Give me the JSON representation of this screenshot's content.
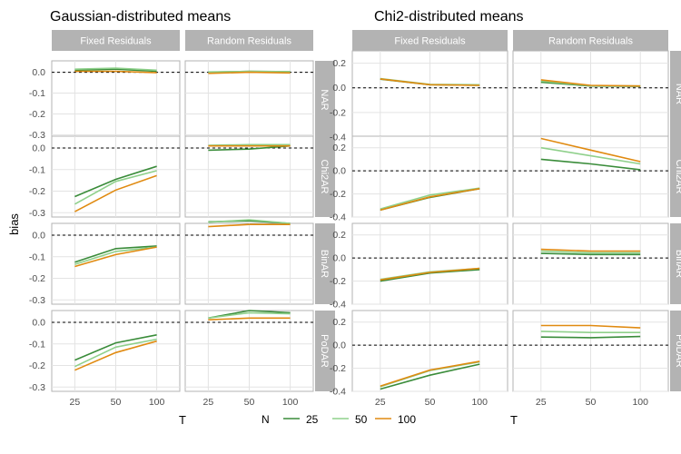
{
  "figure_titles": [
    "Gaussian-distributed means",
    "Chi2-distributed means"
  ],
  "legend": {
    "title": "N",
    "labels": [
      "25",
      "50",
      "100"
    ]
  },
  "colors": {
    "25": "#3a8c3a",
    "50": "#8fd08b",
    "100": "#e08a10",
    "strip": "#b3b3b3",
    "grid": "#e3e3e3",
    "border": "#b3b3b3"
  },
  "chart_data": [
    {
      "type": "line",
      "title": "Gaussian-distributed means",
      "xlabel": "T",
      "ylabel": "bias",
      "x": [
        25,
        50,
        100
      ],
      "x_ticks": [
        "25",
        "50",
        "100"
      ],
      "ylim": [
        -0.32,
        0.055
      ],
      "y_ticks": [
        "0.0",
        "-0.1",
        "-0.2",
        "-0.3"
      ],
      "y_tick_values": [
        0.0,
        -0.1,
        -0.2,
        -0.3
      ],
      "col_labels": [
        "Fixed Residuals",
        "Random Residuals"
      ],
      "row_labels": [
        "NAR",
        "Chi2AR",
        "BinAR",
        "PoDAR"
      ],
      "reference_line": 0,
      "panels": [
        [
          {
            "series": [
              {
                "name": "25",
                "values": [
                  0.01,
                  0.015,
                  0.005
                ]
              },
              {
                "name": "50",
                "values": [
                  0.015,
                  0.02,
                  0.01
                ]
              },
              {
                "name": "100",
                "values": [
                  0.005,
                  0.005,
                  -0.002
                ]
              }
            ]
          },
          {
            "series": [
              {
                "name": "25",
                "values": [
                  0.0,
                  0.005,
                  0.003
                ]
              },
              {
                "name": "50",
                "values": [
                  0.002,
                  0.004,
                  0.003
                ]
              },
              {
                "name": "100",
                "values": [
                  -0.005,
                  0.0,
                  -0.003
                ]
              }
            ]
          }
        ],
        [
          {
            "series": [
              {
                "name": "25",
                "values": [
                  -0.225,
                  -0.145,
                  -0.085
                ]
              },
              {
                "name": "50",
                "values": [
                  -0.26,
                  -0.155,
                  -0.105
                ]
              },
              {
                "name": "100",
                "values": [
                  -0.295,
                  -0.195,
                  -0.128
                ]
              }
            ]
          },
          {
            "series": [
              {
                "name": "25",
                "values": [
                  -0.01,
                  -0.005,
                  0.01
                ]
              },
              {
                "name": "50",
                "values": [
                  0.013,
                  0.016,
                  0.016
                ]
              },
              {
                "name": "100",
                "values": [
                  0.01,
                  0.01,
                  0.01
                ]
              }
            ]
          }
        ],
        [
          {
            "series": [
              {
                "name": "25",
                "values": [
                  -0.125,
                  -0.062,
                  -0.05
                ]
              },
              {
                "name": "50",
                "values": [
                  -0.135,
                  -0.075,
                  -0.055
                ]
              },
              {
                "name": "100",
                "values": [
                  -0.145,
                  -0.09,
                  -0.055
                ]
              }
            ]
          },
          {
            "series": [
              {
                "name": "25",
                "values": [
                  0.062,
                  0.067,
                  0.055
                ]
              },
              {
                "name": "50",
                "values": [
                  0.06,
                  0.072,
                  0.055
                ]
              },
              {
                "name": "100",
                "values": [
                  0.04,
                  0.05,
                  0.05
                ]
              }
            ]
          }
        ],
        [
          {
            "series": [
              {
                "name": "25",
                "values": [
                  -0.175,
                  -0.095,
                  -0.058
                ]
              },
              {
                "name": "50",
                "values": [
                  -0.205,
                  -0.115,
                  -0.078
                ]
              },
              {
                "name": "100",
                "values": [
                  -0.222,
                  -0.14,
                  -0.087
                ]
              }
            ]
          },
          {
            "series": [
              {
                "name": "25",
                "values": [
                  0.02,
                  0.055,
                  0.045
                ]
              },
              {
                "name": "50",
                "values": [
                  0.02,
                  0.045,
                  0.04
                ]
              },
              {
                "name": "100",
                "values": [
                  0.012,
                  0.02,
                  0.02
                ]
              }
            ]
          }
        ]
      ]
    },
    {
      "type": "line",
      "title": "Chi2-distributed means",
      "xlabel": "T",
      "ylabel": "",
      "x": [
        25,
        50,
        100
      ],
      "x_ticks": [
        "25",
        "50",
        "100"
      ],
      "ylim": [
        -0.4,
        0.3
      ],
      "y_ticks": [
        "0.2",
        "0.0",
        "-0.2",
        "-0.4"
      ],
      "y_tick_values": [
        0.2,
        0.0,
        -0.2,
        -0.4
      ],
      "col_labels": [
        "Fixed Residuals",
        "Random Residuals"
      ],
      "row_labels": [
        "NAR",
        "Chi2AR",
        "BinAR",
        "PoDAR"
      ],
      "reference_line": 0,
      "panels": [
        [
          {
            "series": [
              {
                "name": "25",
                "values": [
                  0.07,
                  0.025,
                  0.02
                ]
              },
              {
                "name": "50",
                "values": [
                  0.075,
                  0.028,
                  0.025
                ]
              },
              {
                "name": "100",
                "values": [
                  0.072,
                  0.025,
                  0.02
                ]
              }
            ]
          },
          {
            "series": [
              {
                "name": "25",
                "values": [
                  0.045,
                  0.015,
                  0.012
                ]
              },
              {
                "name": "50",
                "values": [
                  0.055,
                  0.018,
                  0.015
                ]
              },
              {
                "name": "100",
                "values": [
                  0.065,
                  0.02,
                  0.015
                ]
              }
            ]
          }
        ],
        [
          {
            "series": [
              {
                "name": "25",
                "values": [
                  -0.34,
                  -0.23,
                  -0.155
                ]
              },
              {
                "name": "50",
                "values": [
                  -0.33,
                  -0.21,
                  -0.15
                ]
              },
              {
                "name": "100",
                "values": [
                  -0.34,
                  -0.225,
                  -0.155
                ]
              }
            ]
          },
          {
            "series": [
              {
                "name": "25",
                "values": [
                  0.1,
                  0.06,
                  0.01
                ]
              },
              {
                "name": "50",
                "values": [
                  0.2,
                  0.13,
                  0.06
                ]
              },
              {
                "name": "100",
                "values": [
                  0.28,
                  0.18,
                  0.08
                ]
              }
            ]
          }
        ],
        [
          {
            "series": [
              {
                "name": "25",
                "values": [
                  -0.2,
                  -0.13,
                  -0.1
                ]
              },
              {
                "name": "50",
                "values": [
                  -0.185,
                  -0.12,
                  -0.09
                ]
              },
              {
                "name": "100",
                "values": [
                  -0.19,
                  -0.125,
                  -0.09
                ]
              }
            ]
          },
          {
            "series": [
              {
                "name": "25",
                "values": [
                  0.04,
                  0.03,
                  0.03
                ]
              },
              {
                "name": "50",
                "values": [
                  0.06,
                  0.045,
                  0.045
                ]
              },
              {
                "name": "100",
                "values": [
                  0.075,
                  0.06,
                  0.06
                ]
              }
            ]
          }
        ],
        [
          {
            "series": [
              {
                "name": "25",
                "values": [
                  -0.38,
                  -0.26,
                  -0.165
                ]
              },
              {
                "name": "50",
                "values": [
                  -0.36,
                  -0.22,
                  -0.145
                ]
              },
              {
                "name": "100",
                "values": [
                  -0.355,
                  -0.215,
                  -0.14
                ]
              }
            ]
          },
          {
            "series": [
              {
                "name": "25",
                "values": [
                  0.07,
                  0.065,
                  0.075
                ]
              },
              {
                "name": "50",
                "values": [
                  0.12,
                  0.11,
                  0.11
                ]
              },
              {
                "name": "100",
                "values": [
                  0.17,
                  0.17,
                  0.15
                ]
              }
            ]
          }
        ]
      ]
    }
  ]
}
